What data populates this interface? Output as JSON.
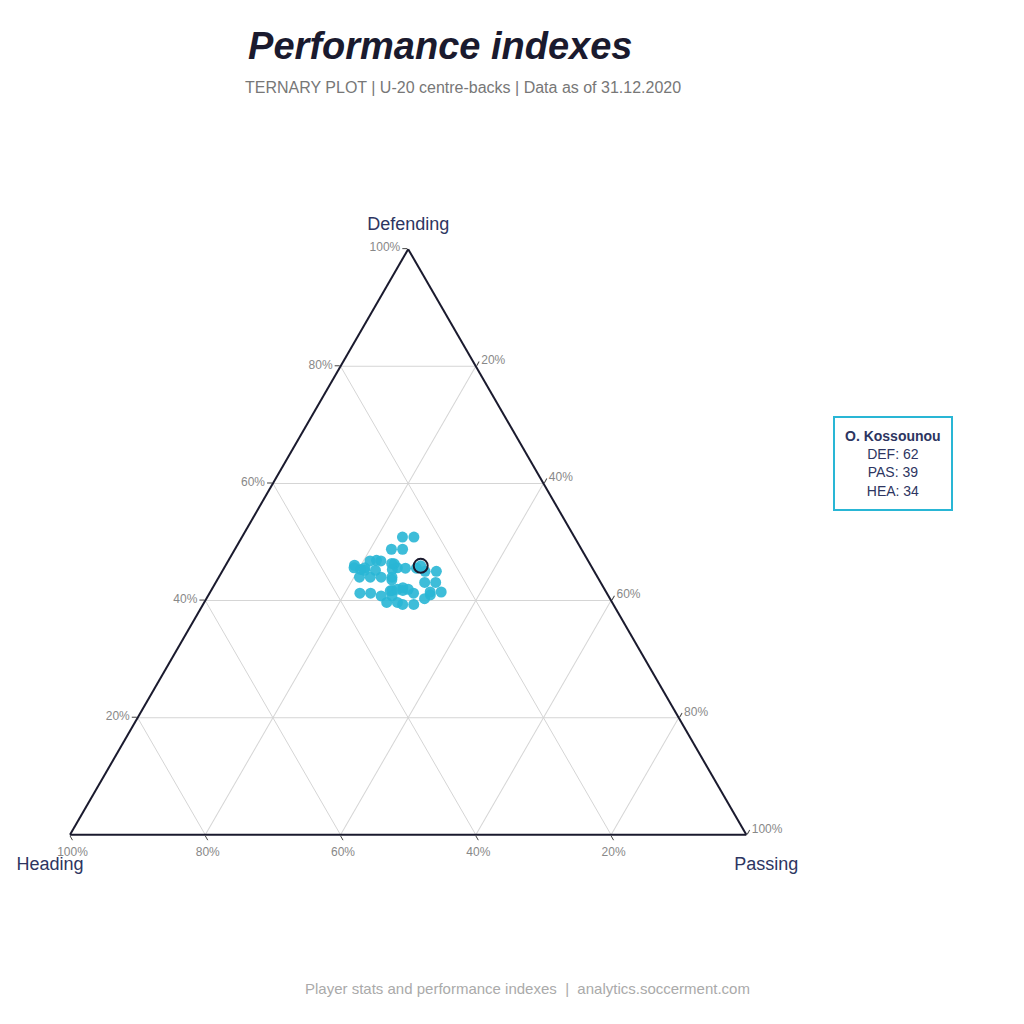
{
  "chart_data": {
    "type": "ternary",
    "title": "Performance indexes",
    "subtitle": "TERNARY PLOT | U-20 centre-backs | Data as of 31.12.2020",
    "footer": "Player stats and performance indexes  |  analytics.soccerment.com",
    "grid": true,
    "grid_color": "#d5d5d5",
    "triangle_color": "#1a1a2e",
    "marker": "circle",
    "sum": 100,
    "a_axis": {
      "label": "Defending",
      "ticks": [
        {
          "value": 20,
          "label": "20%"
        },
        {
          "value": 40,
          "label": "40%"
        },
        {
          "value": 60,
          "label": "60%"
        },
        {
          "value": 80,
          "label": "80%"
        },
        {
          "value": 100,
          "label": "100%"
        }
      ]
    },
    "b_axis": {
      "label": "Heading",
      "ticks": [
        {
          "value": 20,
          "label": "20%"
        },
        {
          "value": 40,
          "label": "40%"
        },
        {
          "value": 60,
          "label": "60%"
        },
        {
          "value": 80,
          "label": "80%"
        },
        {
          "value": 100,
          "label": "100%"
        }
      ]
    },
    "c_axis": {
      "label": "Passing",
      "ticks": [
        {
          "value": 20,
          "label": "20%"
        },
        {
          "value": 40,
          "label": "40%"
        },
        {
          "value": 60,
          "label": "60%"
        },
        {
          "value": 80,
          "label": "80%"
        },
        {
          "value": 100,
          "label": "100%"
        }
      ]
    },
    "series": [
      {
        "color": "#29b6d5",
        "defending": [
          62,
          58,
          55,
          60,
          52,
          56,
          54,
          50,
          58,
          53,
          57,
          51,
          55,
          60,
          48,
          56,
          52,
          54,
          58,
          50,
          55,
          53,
          57,
          51,
          59,
          52,
          56,
          54,
          50,
          58,
          53,
          57,
          51,
          55,
          60,
          48,
          56,
          52,
          54,
          58,
          50,
          55,
          53,
          57,
          51,
          59,
          52,
          56
        ],
        "passing": [
          39,
          32,
          35,
          28,
          38,
          30,
          36,
          40,
          26,
          34,
          32,
          42,
          28,
          30,
          38,
          35,
          30,
          38,
          28,
          36,
          32,
          40,
          26,
          34,
          30,
          36,
          28,
          32,
          40,
          24,
          36,
          30,
          40,
          26,
          28,
          36,
          33,
          28,
          36,
          26,
          34,
          30,
          38,
          24,
          32,
          28,
          34,
          26
        ],
        "heading": [
          34,
          38,
          42,
          40,
          36,
          35,
          38,
          32,
          44,
          40,
          36,
          30,
          42,
          28,
          36,
          32,
          44,
          28,
          38,
          40,
          38,
          30,
          42,
          40,
          32,
          36,
          40,
          38,
          34,
          44,
          38,
          36,
          32,
          44,
          30,
          38,
          34,
          46,
          30,
          40,
          42,
          40,
          32,
          44,
          42,
          34,
          38,
          42
        ]
      }
    ],
    "highlight": {
      "name": "O. Kossounou",
      "defending": 62,
      "passing": 39,
      "heading": 34,
      "labels": [
        "DEF: 62",
        "PAS: 39",
        "HEA: 34"
      ],
      "color": "#29b6d5",
      "edge_color": "#1a1a2e"
    }
  }
}
